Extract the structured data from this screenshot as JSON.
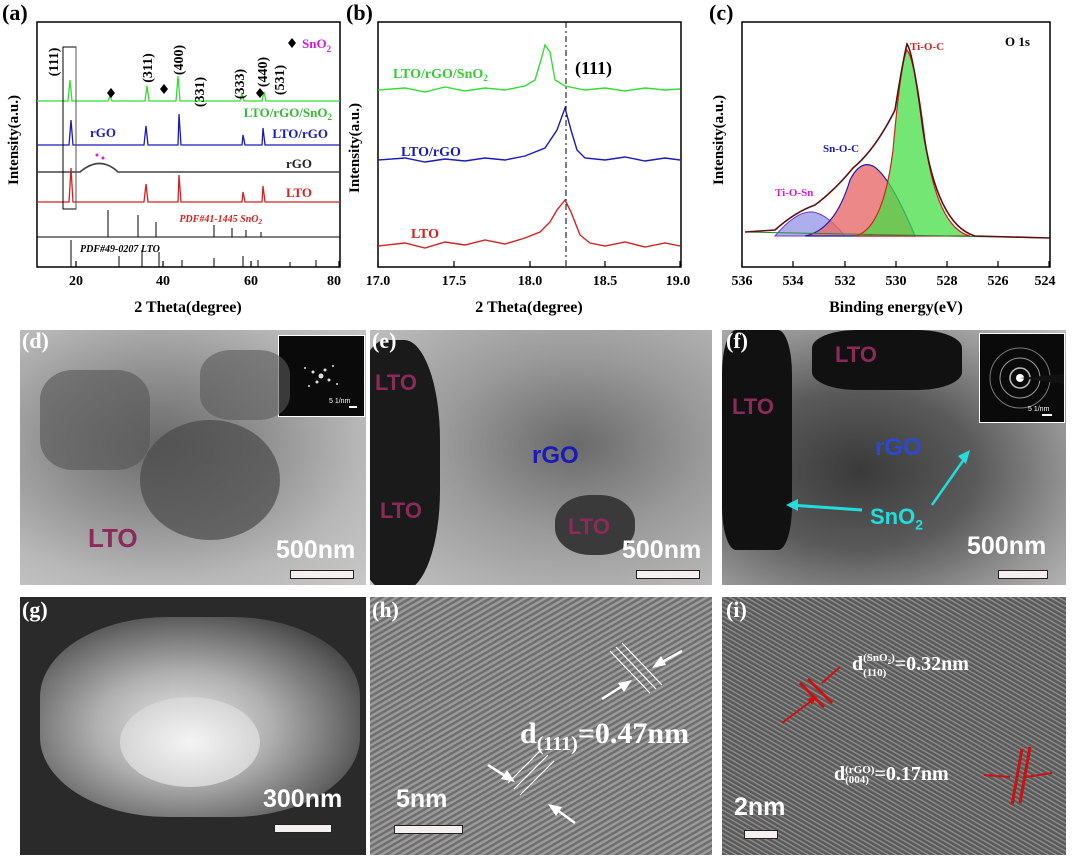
{
  "panel_a": {
    "letter": "(a)",
    "xlabel": "2 Theta(degree)",
    "ylabel": "Intensity(a.u.)",
    "xticks": [
      "20",
      "40",
      "60",
      "80"
    ],
    "legend_sno2": "SnO",
    "legend_sno2_sub": "2",
    "peaks": [
      "(111)",
      "(311)",
      "(400)",
      "(331)",
      "(333)",
      "(440)",
      "(531)"
    ],
    "series_labels": {
      "lto_rgo_sno2": "LTO/rGO/SnO",
      "lto_rgo": "LTO/rGO",
      "rgo": "rGO",
      "lto": "LTO",
      "rgo_peak": "rGO"
    },
    "pdf_sno2": "PDF#41-1445 SnO",
    "pdf_lto": "PDF#49-0207 LTO"
  },
  "panel_b": {
    "letter": "(b)",
    "xlabel": "2 Theta(degree)",
    "ylabel": "Intensity(a.u.)",
    "xticks": [
      "17.0",
      "17.5",
      "18.0",
      "18.5",
      "19.0"
    ],
    "peak": "(111)",
    "series_labels": {
      "lto_rgo_sno2": "LTO/rGO/SnO",
      "lto_rgo": "LTO/rGO",
      "lto": "LTO"
    }
  },
  "panel_c": {
    "letter": "(c)",
    "xlabel": "Binding energy(eV)",
    "ylabel": "Intensity(a.u.)",
    "xticks": [
      "536",
      "534",
      "532",
      "530",
      "528",
      "526",
      "524"
    ],
    "title": "O 1s",
    "components": {
      "ti_o_c": "Ti-O-C",
      "sn_o_c": "Sn-O-C",
      "ti_o_sn": "Ti-O-Sn"
    }
  },
  "panel_d": {
    "letter": "(d)",
    "label": "LTO",
    "scale": "500nm",
    "inset_scale": "5 1/nm"
  },
  "panel_e": {
    "letter": "(e)",
    "labels": [
      "LTO",
      "LTO",
      "rGO",
      "LTO"
    ],
    "scale": "500nm"
  },
  "panel_f": {
    "letter": "(f)",
    "labels": [
      "LTO",
      "LTO",
      "rGO"
    ],
    "sno2": "SnO",
    "sno2_sub": "2",
    "scale": "500nm",
    "inset_scale": "5 1/nm"
  },
  "panel_g": {
    "letter": "(g)",
    "scale": "300nm"
  },
  "panel_h": {
    "letter": "(h)",
    "d_label": "d",
    "d_sub": "(111)",
    "d_val": "=0.47nm",
    "scale": "5nm"
  },
  "panel_i": {
    "letter": "(i)",
    "d1": "d",
    "d1_sup": "(SnO",
    "d1_sup2": ")",
    "d1_sub": "(110)",
    "d1_val": "=0.32nm",
    "d2": "d",
    "d2_sup": "(rGO)",
    "d2_sub": "(004)",
    "d2_val": "=0.17nm",
    "scale": "2nm"
  },
  "colors": {
    "green": "#33dd33",
    "blue": "#1a1ab8",
    "red": "#d42020",
    "dark": "#333333",
    "magenta": "#d81bd8"
  }
}
